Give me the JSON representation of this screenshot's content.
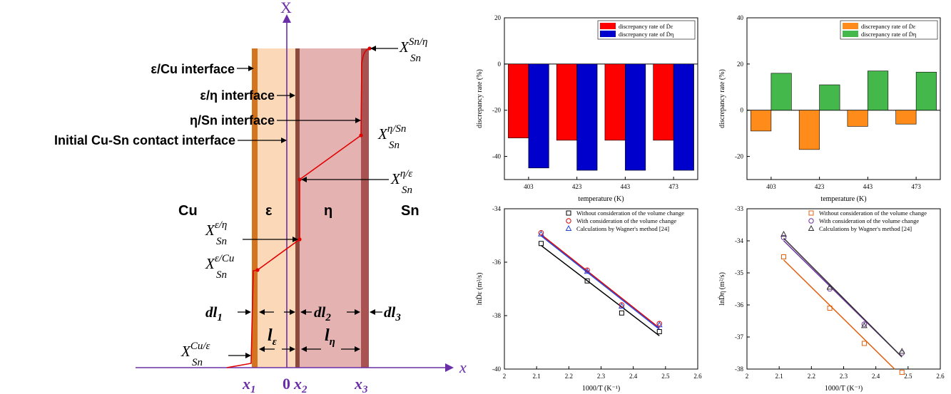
{
  "diagram": {
    "axis_x_top": "X",
    "axis_x_right": "x",
    "phases": {
      "cu": "Cu",
      "eps": "ε",
      "eta": "η",
      "sn": "Sn"
    },
    "interfaces": [
      "ε/Cu interface",
      "ε/η interface",
      "η/Sn interface",
      "Initial Cu-Sn contact interface"
    ],
    "conc_labels": [
      {
        "base": "X",
        "sub": "Sn",
        "sup": "Sn/η"
      },
      {
        "base": "X",
        "sub": "Sn",
        "sup": "η/Sn"
      },
      {
        "base": "X",
        "sub": "Sn",
        "sup": "η/ε"
      },
      {
        "base": "X",
        "sub": "Sn",
        "sup": "ε/η"
      },
      {
        "base": "X",
        "sub": "Sn",
        "sup": "ε/Cu"
      },
      {
        "base": "X",
        "sub": "Sn",
        "sup": "Cu/ε"
      }
    ],
    "dl": [
      {
        "base": "dl",
        "sub": "1"
      },
      {
        "base": "dl",
        "sub": "2"
      },
      {
        "base": "dl",
        "sub": "3"
      }
    ],
    "l": [
      {
        "base": "l",
        "sub": "ε"
      },
      {
        "base": "l",
        "sub": "η"
      }
    ],
    "x_marks": [
      {
        "base": "x",
        "sub": "1"
      },
      {
        "base": "0",
        "sub": ""
      },
      {
        "base": "x",
        "sub": "2"
      },
      {
        "base": "x",
        "sub": "3"
      }
    ]
  },
  "chart_data": [
    {
      "type": "bar",
      "title": "",
      "xlabel": "temperature (K)",
      "ylabel": "discrepancy rate (%)",
      "categories": [
        "403",
        "423",
        "443",
        "473"
      ],
      "ylim": [
        -50,
        20
      ],
      "yticks": [
        20,
        0,
        -20,
        -40
      ],
      "legend_position": "top-right",
      "series": [
        {
          "name": "discrepancy rate of Ḋε",
          "values": [
            -32,
            -33,
            -33,
            -33
          ],
          "color": "#ff0000"
        },
        {
          "name": "discrepancy rate of Ḋη",
          "values": [
            -45,
            -46,
            -46,
            -46
          ],
          "color": "#0000cc"
        }
      ]
    },
    {
      "type": "bar",
      "title": "",
      "xlabel": "temperature (K)",
      "ylabel": "discrepancy rate (%)",
      "categories": [
        "403",
        "423",
        "443",
        "473"
      ],
      "ylim": [
        -30,
        40
      ],
      "yticks": [
        40,
        20,
        0,
        -20
      ],
      "legend_position": "top-right",
      "series": [
        {
          "name": "discrepancy rate of Ḋε",
          "values": [
            -9,
            -17,
            -7,
            -6
          ],
          "color": "#ff8c1a"
        },
        {
          "name": "discrepancy rate of Ḋη",
          "values": [
            16,
            11,
            17,
            16.5
          ],
          "color": "#44b84a"
        }
      ]
    },
    {
      "type": "scatter",
      "title": "",
      "xlabel": "1000/T (K⁻¹)",
      "ylabel": "lnḊε (m²/s)",
      "xlim": [
        2.0,
        2.6
      ],
      "ylim": [
        -40,
        -34
      ],
      "xticks": [
        2.0,
        2.1,
        2.2,
        2.3,
        2.4,
        2.5,
        2.6
      ],
      "yticks": [
        -34,
        -36,
        -38,
        -40
      ],
      "legend_position": "top-right",
      "series": [
        {
          "name": "Without consideration of the volume change",
          "marker": "square",
          "color": "#000000",
          "x": [
            2.114,
            2.257,
            2.364,
            2.481
          ],
          "y": [
            -35.3,
            -36.7,
            -37.9,
            -38.6
          ]
        },
        {
          "name": "With consideration of the volume change",
          "marker": "circle",
          "color": "#dd0000",
          "x": [
            2.114,
            2.257,
            2.364,
            2.481
          ],
          "y": [
            -34.9,
            -36.3,
            -37.6,
            -38.3
          ]
        },
        {
          "name": "Calculations by Wagner's method [24]",
          "marker": "triangle",
          "color": "#2244dd",
          "x": [
            2.114,
            2.257,
            2.364,
            2.481
          ],
          "y": [
            -34.95,
            -36.35,
            -37.65,
            -38.35
          ]
        }
      ]
    },
    {
      "type": "scatter",
      "title": "",
      "xlabel": "1000/T (K⁻¹)",
      "ylabel": "lnḊη (m²/s)",
      "xlim": [
        2.0,
        2.6
      ],
      "ylim": [
        -38,
        -33
      ],
      "xticks": [
        2.0,
        2.1,
        2.2,
        2.3,
        2.4,
        2.5,
        2.6
      ],
      "yticks": [
        -33,
        -34,
        -35,
        -36,
        -37,
        -38
      ],
      "legend_position": "top-right",
      "series": [
        {
          "name": "Without consideration of the volume change",
          "marker": "square",
          "color": "#e06010",
          "x": [
            2.114,
            2.257,
            2.364,
            2.481
          ],
          "y": [
            -34.5,
            -36.1,
            -37.2,
            -38.1
          ]
        },
        {
          "name": "With consideration of the volume change",
          "marker": "circle",
          "color": "#7030a0",
          "x": [
            2.114,
            2.257,
            2.364,
            2.481
          ],
          "y": [
            -33.9,
            -35.5,
            -36.6,
            -37.5
          ]
        },
        {
          "name": "Calculations by Wagner's method [24]",
          "marker": "triangle",
          "color": "#333333",
          "x": [
            2.114,
            2.257,
            2.364,
            2.481
          ],
          "y": [
            -33.8,
            -35.45,
            -36.65,
            -37.45
          ]
        }
      ]
    }
  ]
}
